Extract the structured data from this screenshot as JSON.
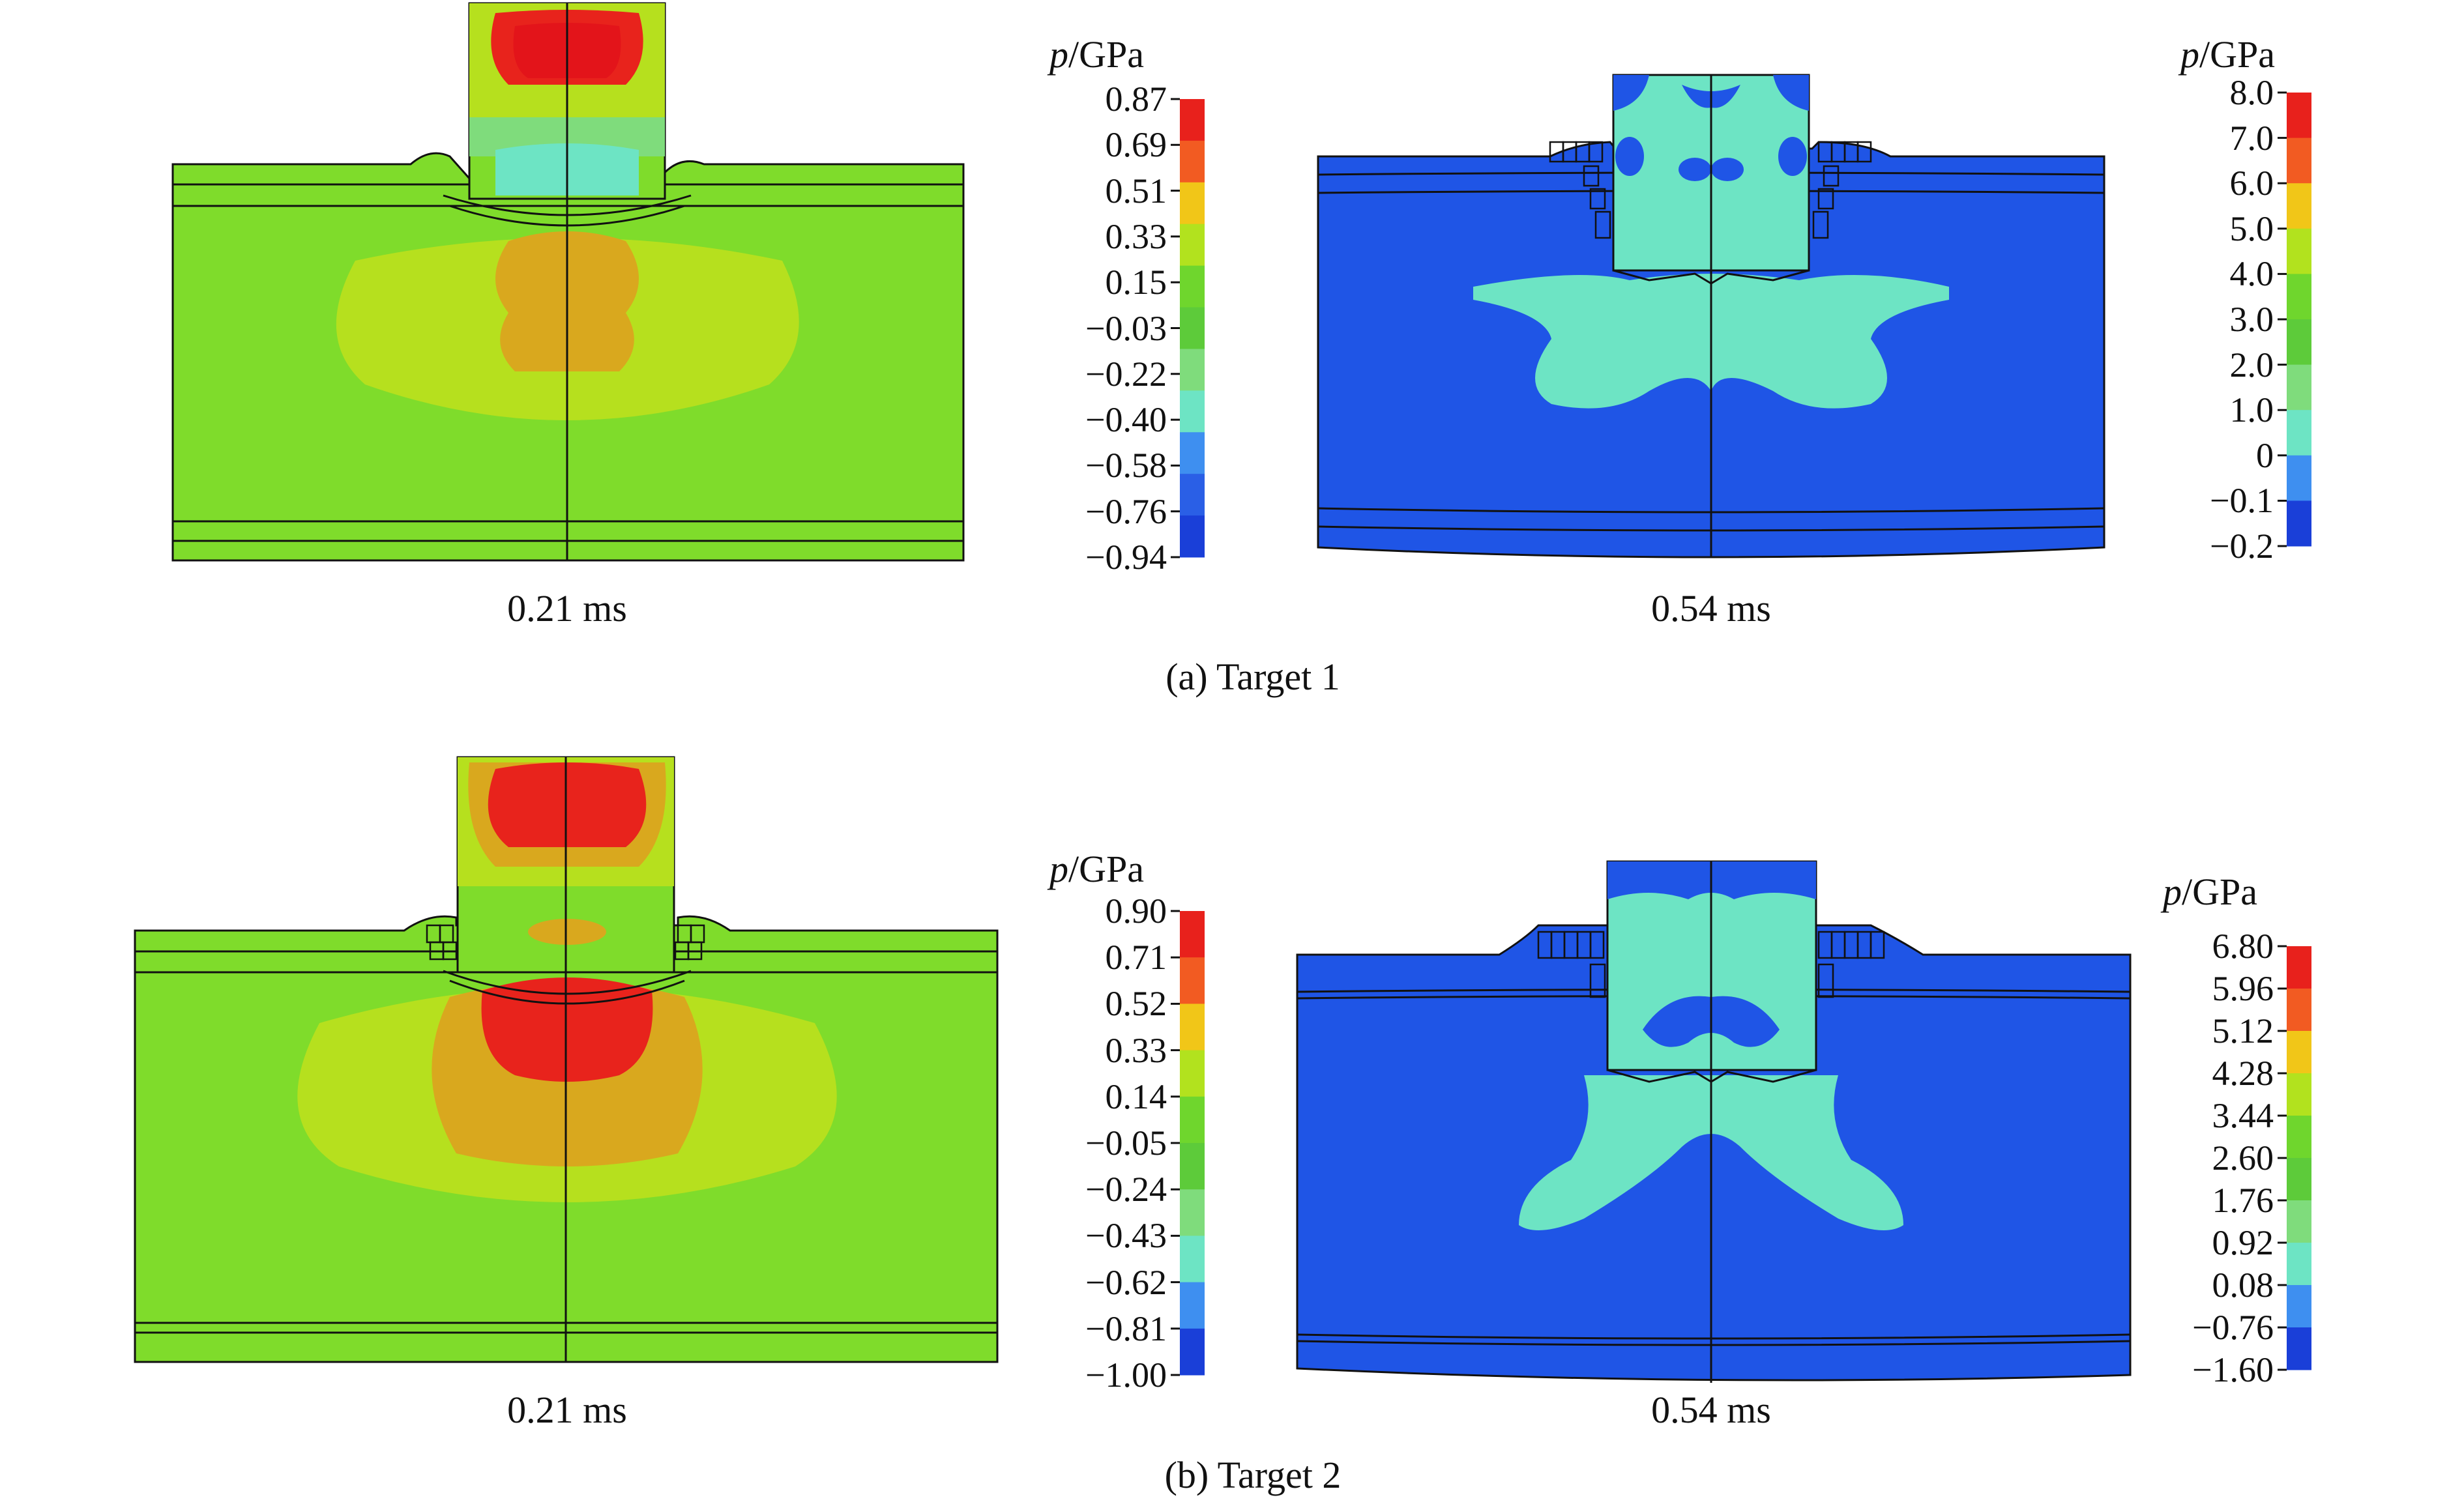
{
  "figure": {
    "panels": [
      {
        "caption": "(a) Target 1",
        "plots": [
          {
            "time": "0.21 ms",
            "legend": {
              "title_var": "p",
              "title_unit": "/GPa",
              "ticks": [
                "0.87",
                "0.69",
                "0.51",
                "0.33",
                "0.15",
                "−0.03",
                "−0.22",
                "−0.40",
                "−0.58",
                "−0.76",
                "−0.94"
              ],
              "colors": [
                "#e8211c",
                "#f25b22",
                "#f1c618",
                "#b2e21e",
                "#6fd62d",
                "#5dcb3a",
                "#7fdc7c",
                "#6de4c4",
                "#3e8ff0",
                "#2a5fe6",
                "#1a3fd8"
              ]
            }
          },
          {
            "time": "0.54 ms",
            "legend": {
              "title_var": "p",
              "title_unit": "/GPa",
              "ticks": [
                "8.0",
                "7.0",
                "6.0",
                "5.0",
                "4.0",
                "3.0",
                "2.0",
                "1.0",
                "0",
                "−0.1",
                "−0.2"
              ],
              "colors": [
                "#e8211c",
                "#f25b22",
                "#f1c618",
                "#b2e21e",
                "#6fd62d",
                "#5dcb3a",
                "#7fdc7c",
                "#6de4c4",
                "#3e8ff0",
                "#1a3fd8"
              ]
            }
          }
        ]
      },
      {
        "caption": "(b) Target 2",
        "plots": [
          {
            "time": "0.21 ms",
            "legend": {
              "title_var": "p",
              "title_unit": "/GPa",
              "ticks": [
                "0.90",
                "0.71",
                "0.52",
                "0.33",
                "0.14",
                "−0.05",
                "−0.24",
                "−0.43",
                "−0.62",
                "−0.81",
                "−1.00"
              ],
              "colors": [
                "#e8211c",
                "#f25b22",
                "#f1c618",
                "#b2e21e",
                "#6fd62d",
                "#5dcb3a",
                "#7fdc7c",
                "#6de4c4",
                "#3e8ff0",
                "#1a3fd8"
              ]
            }
          },
          {
            "time": "0.54 ms",
            "legend": {
              "title_var": "p",
              "title_unit": "/GPa",
              "ticks": [
                "6.80",
                "5.96",
                "5.12",
                "4.28",
                "3.44",
                "2.60",
                "1.76",
                "0.92",
                "0.08",
                "−0.76",
                "−1.60"
              ],
              "colors": [
                "#e8211c",
                "#f25b22",
                "#f1c618",
                "#b2e21e",
                "#6fd62d",
                "#5dcb3a",
                "#7fdc7c",
                "#6de4c4",
                "#3e8ff0",
                "#1a3fd8"
              ]
            }
          }
        ]
      }
    ],
    "palette": {
      "green_field": "#7fdc2b",
      "blue_field": "#1f55e6",
      "cyan_region": "#6de4c4",
      "orange_region": "#d9a81e",
      "red_region": "#e8231c",
      "yellow_green": "#b6e01e",
      "outline": "#111111"
    }
  }
}
